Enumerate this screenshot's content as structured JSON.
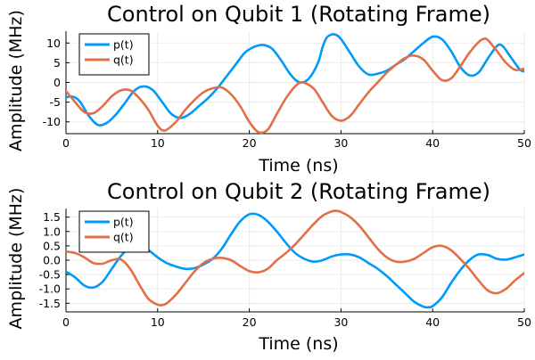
{
  "chart_data": [
    {
      "type": "line",
      "title": "Control on Qubit 1 (Rotating Frame)",
      "xlabel": "Time (ns)",
      "ylabel": "Amplitude (MHz)",
      "xlim": [
        0,
        50
      ],
      "ylim": [
        -13,
        13
      ],
      "xticks": [
        0,
        10,
        20,
        30,
        40,
        50
      ],
      "yticks": [
        -10,
        -5,
        0,
        5,
        10
      ],
      "grid": true,
      "legend_position": "top-left",
      "series": [
        {
          "name": "p(t)",
          "color": "#009AFA",
          "points": [
            [
              0,
              -3.8
            ],
            [
              0.7,
              -3.6
            ],
            [
              1.5,
              -4.8
            ],
            [
              2.5,
              -8.5
            ],
            [
              3.5,
              -10.8
            ],
            [
              4.5,
              -10.2
            ],
            [
              5.5,
              -8
            ],
            [
              6.5,
              -5
            ],
            [
              7.5,
              -2
            ],
            [
              8.5,
              -1
            ],
            [
              9.5,
              -2
            ],
            [
              10.5,
              -5
            ],
            [
              11.5,
              -8
            ],
            [
              12.5,
              -9
            ],
            [
              13.5,
              -8
            ],
            [
              14.5,
              -6
            ],
            [
              15.5,
              -4
            ],
            [
              16.5,
              -1.5
            ],
            [
              17.5,
              1.5
            ],
            [
              18.5,
              4.5
            ],
            [
              19.5,
              7.5
            ],
            [
              20.5,
              9
            ],
            [
              21.5,
              9.5
            ],
            [
              22.5,
              8.5
            ],
            [
              23.5,
              5.5
            ],
            [
              24.5,
              2
            ],
            [
              25.5,
              0
            ],
            [
              26.5,
              1
            ],
            [
              27.5,
              5
            ],
            [
              28,
              9
            ],
            [
              28.5,
              11.5
            ],
            [
              29.3,
              12.2
            ],
            [
              30,
              11
            ],
            [
              31,
              7.5
            ],
            [
              32,
              4
            ],
            [
              33,
              2
            ],
            [
              34,
              2.2
            ],
            [
              35,
              3
            ],
            [
              36,
              4.5
            ],
            [
              37,
              6
            ],
            [
              38,
              8
            ],
            [
              39,
              10
            ],
            [
              40,
              11.6
            ],
            [
              41,
              11
            ],
            [
              42,
              8
            ],
            [
              43,
              4
            ],
            [
              44,
              1.8
            ],
            [
              45,
              2.5
            ],
            [
              46,
              6
            ],
            [
              47,
              9.2
            ],
            [
              47.6,
              9.3
            ],
            [
              48.5,
              6.5
            ],
            [
              49.5,
              3.3
            ],
            [
              50,
              2.8
            ]
          ]
        },
        {
          "name": "q(t)",
          "color": "#E26F46",
          "points": [
            [
              0,
              -2.2
            ],
            [
              1,
              -5
            ],
            [
              2,
              -7.5
            ],
            [
              3,
              -7.8
            ],
            [
              4,
              -6
            ],
            [
              5,
              -3.5
            ],
            [
              6,
              -2
            ],
            [
              7,
              -2
            ],
            [
              8,
              -4
            ],
            [
              9,
              -7
            ],
            [
              10,
              -11
            ],
            [
              10.8,
              -12.2
            ],
            [
              12,
              -10
            ],
            [
              13,
              -7
            ],
            [
              14,
              -4.5
            ],
            [
              15,
              -2.5
            ],
            [
              16,
              -1.5
            ],
            [
              17,
              -1.3
            ],
            [
              18,
              -3
            ],
            [
              19,
              -6
            ],
            [
              20,
              -10
            ],
            [
              21,
              -12.6
            ],
            [
              22,
              -12
            ],
            [
              23,
              -8
            ],
            [
              24,
              -4
            ],
            [
              25,
              -1
            ],
            [
              25.8,
              0
            ],
            [
              27,
              -1.5
            ],
            [
              28,
              -5
            ],
            [
              29,
              -8.5
            ],
            [
              30,
              -9.7
            ],
            [
              31,
              -8.5
            ],
            [
              32,
              -5.5
            ],
            [
              33,
              -2.5
            ],
            [
              34,
              0
            ],
            [
              35,
              2.5
            ],
            [
              36,
              4.5
            ],
            [
              37,
              6.2
            ],
            [
              38,
              6.8
            ],
            [
              39,
              5.8
            ],
            [
              40,
              3
            ],
            [
              41,
              0.6
            ],
            [
              42,
              1
            ],
            [
              43,
              4
            ],
            [
              44,
              7.5
            ],
            [
              45,
              10.2
            ],
            [
              45.5,
              11
            ],
            [
              46,
              10.8
            ],
            [
              47,
              8
            ],
            [
              48,
              5
            ],
            [
              49,
              3.2
            ],
            [
              50,
              3.5
            ]
          ]
        }
      ]
    },
    {
      "type": "line",
      "title": "Control on Qubit 2 (Rotating Frame)",
      "xlabel": "Time (ns)",
      "ylabel": "Amplitude (MHz)",
      "xlim": [
        0,
        50
      ],
      "ylim": [
        -1.8,
        1.8
      ],
      "xticks": [
        0,
        10,
        20,
        30,
        40,
        50
      ],
      "yticks": [
        -1.5,
        -1.0,
        -0.5,
        0.0,
        0.5,
        1.0,
        1.5
      ],
      "ytick_labels": [
        "-1.5",
        "-1.0",
        "-0.5",
        "0.0",
        "0.5",
        "1.0",
        "1.5"
      ],
      "grid": true,
      "legend_position": "top-left",
      "series": [
        {
          "name": "p(t)",
          "color": "#009AFA",
          "points": [
            [
              0,
              -0.4
            ],
            [
              1,
              -0.6
            ],
            [
              2,
              -0.88
            ],
            [
              3,
              -0.95
            ],
            [
              4,
              -0.75
            ],
            [
              5,
              -0.3
            ],
            [
              6,
              0.15
            ],
            [
              7,
              0.45
            ],
            [
              8,
              0.5
            ],
            [
              9,
              0.35
            ],
            [
              10,
              0.1
            ],
            [
              11,
              -0.1
            ],
            [
              12,
              -0.22
            ],
            [
              13,
              -0.3
            ],
            [
              14,
              -0.28
            ],
            [
              15,
              -0.15
            ],
            [
              16,
              0.05
            ],
            [
              17,
              0.4
            ],
            [
              18,
              0.9
            ],
            [
              19,
              1.35
            ],
            [
              20,
              1.6
            ],
            [
              21,
              1.58
            ],
            [
              22,
              1.35
            ],
            [
              23,
              1
            ],
            [
              24,
              0.6
            ],
            [
              25,
              0.25
            ],
            [
              26,
              0.05
            ],
            [
              27,
              -0.05
            ],
            [
              28,
              0
            ],
            [
              29,
              0.13
            ],
            [
              30,
              0.2
            ],
            [
              31,
              0.2
            ],
            [
              32,
              0.1
            ],
            [
              33,
              -0.1
            ],
            [
              34,
              -0.3
            ],
            [
              35,
              -0.55
            ],
            [
              36,
              -0.85
            ],
            [
              37,
              -1.15
            ],
            [
              38,
              -1.45
            ],
            [
              39,
              -1.62
            ],
            [
              39.5,
              -1.64
            ],
            [
              40,
              -1.6
            ],
            [
              41,
              -1.3
            ],
            [
              42,
              -0.8
            ],
            [
              43,
              -0.35
            ],
            [
              44,
              0
            ],
            [
              45,
              0.2
            ],
            [
              46,
              0.18
            ],
            [
              47,
              0.05
            ],
            [
              48,
              0.02
            ],
            [
              49,
              0.1
            ],
            [
              50,
              0.2
            ]
          ]
        },
        {
          "name": "q(t)",
          "color": "#E26F46",
          "points": [
            [
              0,
              0.3
            ],
            [
              1,
              0.25
            ],
            [
              2,
              0.1
            ],
            [
              3,
              -0.1
            ],
            [
              4,
              -0.12
            ],
            [
              5,
              0
            ],
            [
              6,
              0.02
            ],
            [
              7,
              -0.3
            ],
            [
              8,
              -0.85
            ],
            [
              9,
              -1.35
            ],
            [
              10,
              -1.55
            ],
            [
              10.5,
              -1.56
            ],
            [
              11,
              -1.5
            ],
            [
              12,
              -1.2
            ],
            [
              13,
              -0.8
            ],
            [
              14,
              -0.4
            ],
            [
              15,
              -0.1
            ],
            [
              16,
              0.05
            ],
            [
              17,
              0.08
            ],
            [
              18,
              0
            ],
            [
              19,
              -0.2
            ],
            [
              20,
              -0.38
            ],
            [
              21,
              -0.42
            ],
            [
              22,
              -0.3
            ],
            [
              23,
              0
            ],
            [
              24,
              0.25
            ],
            [
              25,
              0.55
            ],
            [
              26,
              0.9
            ],
            [
              27,
              1.25
            ],
            [
              28,
              1.55
            ],
            [
              29,
              1.7
            ],
            [
              29.5,
              1.72
            ],
            [
              30,
              1.68
            ],
            [
              31,
              1.5
            ],
            [
              32,
              1.2
            ],
            [
              33,
              0.8
            ],
            [
              34,
              0.4
            ],
            [
              35,
              0.1
            ],
            [
              36,
              -0.05
            ],
            [
              37,
              -0.05
            ],
            [
              38,
              0.05
            ],
            [
              39,
              0.25
            ],
            [
              40,
              0.45
            ],
            [
              41,
              0.5
            ],
            [
              42,
              0.35
            ],
            [
              43,
              0.05
            ],
            [
              44,
              -0.3
            ],
            [
              45,
              -0.7
            ],
            [
              46,
              -1.05
            ],
            [
              47,
              -1.15
            ],
            [
              48,
              -1
            ],
            [
              49,
              -0.7
            ],
            [
              50,
              -0.45
            ]
          ]
        }
      ]
    }
  ]
}
